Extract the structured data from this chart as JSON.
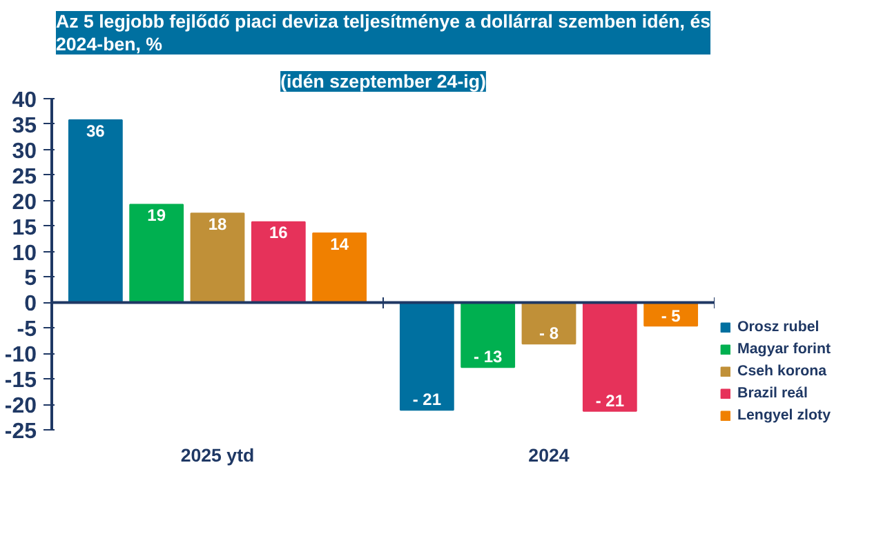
{
  "chart_data": {
    "type": "bar",
    "title": "Az 5 legjobb fejlődő piaci deviza teljesítménye a dollárral szemben idén, és 2024-ben, %",
    "subtitle": "(idén szeptember 24-ig)",
    "categories": [
      "2025 ytd",
      "2024"
    ],
    "series": [
      {
        "name": "Orosz rubel",
        "color": "#0070a0",
        "values": [
          35.8,
          -21.1
        ],
        "value_labels": [
          "36",
          "- 21"
        ]
      },
      {
        "name": "Magyar forint",
        "color": "#00b050",
        "values": [
          19.2,
          -12.7
        ],
        "value_labels": [
          "19",
          "- 13"
        ]
      },
      {
        "name": "Cseh korona",
        "color": "#c09038",
        "values": [
          17.5,
          -8.1
        ],
        "value_labels": [
          "18",
          "- 8"
        ]
      },
      {
        "name": "Brazil reál",
        "color": "#e6325a",
        "values": [
          15.8,
          -21.3
        ],
        "value_labels": [
          "16",
          "- 21"
        ]
      },
      {
        "name": "Lengyel zloty",
        "color": "#f08000",
        "values": [
          13.6,
          -4.6
        ],
        "value_labels": [
          "14",
          "- 5"
        ]
      }
    ],
    "ylim": [
      -25,
      40
    ],
    "yticks": [
      -25,
      -20,
      -15,
      -10,
      -5,
      0,
      5,
      10,
      15,
      20,
      25,
      30,
      35,
      40
    ],
    "legend": "right",
    "ref_lines": [
      {
        "axis": "y",
        "value": 0,
        "color": "#1f3864"
      }
    ]
  }
}
